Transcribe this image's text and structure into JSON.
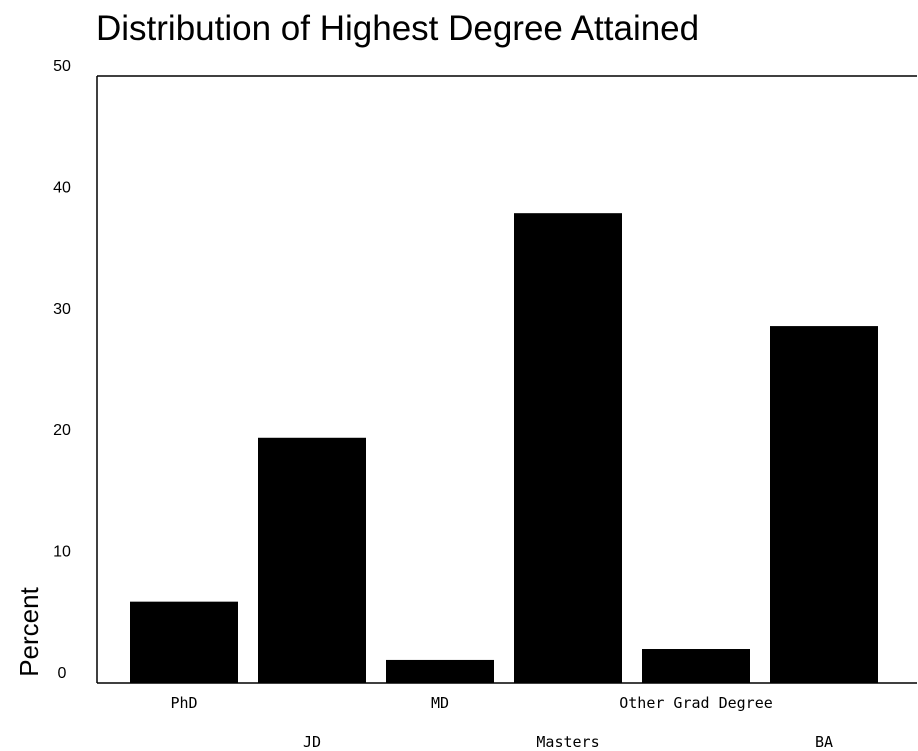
{
  "chart_data": {
    "type": "bar",
    "title": "Distribution of Highest Degree Attained",
    "xlabel": "",
    "ylabel": "Percent",
    "categories": [
      "PhD",
      "JD",
      "MD",
      "Masters",
      "Other Grad Degree",
      "BA"
    ],
    "values": [
      6.7,
      20.2,
      1.9,
      38.7,
      2.8,
      29.4
    ],
    "ylim": [
      0,
      50
    ],
    "yticks": [
      "0",
      "10",
      "20",
      "30",
      "40",
      "50"
    ],
    "grid": false,
    "legend": "none",
    "bar_color": "#000000"
  }
}
